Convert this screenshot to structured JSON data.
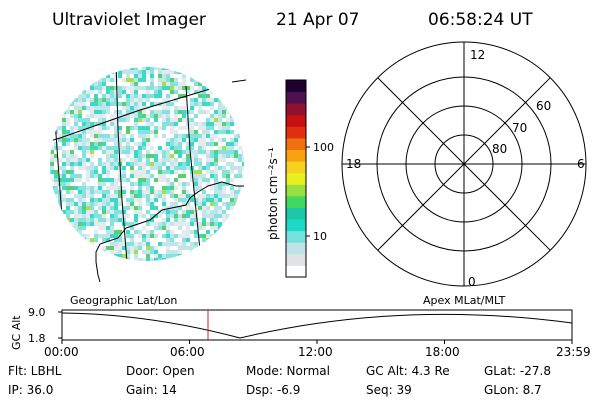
{
  "header": {
    "instrument": "Ultraviolet Imager",
    "date": "21 Apr 07",
    "time": "06:58:24 UT"
  },
  "colorbar": {
    "unit_label": "photon cm⁻²s⁻¹",
    "tick_100": "100",
    "tick_10": "10",
    "colors": [
      "#ffffff",
      "#dde3e6",
      "#bfe3e8",
      "#74e2dc",
      "#1dd8c8",
      "#1cc8a8",
      "#40d860",
      "#98e040",
      "#e8f020",
      "#f8d020",
      "#f8a010",
      "#f07010",
      "#e03010",
      "#c81010",
      "#901030",
      "#501050",
      "#200030"
    ]
  },
  "images": {
    "left_caption": "Geographic Lat/Lon",
    "right_caption": "Apex MLat/MLT"
  },
  "polar": {
    "mlt_12": "12",
    "mlt_18": "18",
    "mlt_6": "6",
    "mlt_0": "0",
    "mlat_60": "60",
    "mlat_70": "70",
    "mlat_80": "80"
  },
  "altitude_plot": {
    "ylabel": "GC Alt",
    "ymax_label": "9.0",
    "ymin_label": "1.8",
    "xticks": [
      "00:00",
      "06:00",
      "12:00",
      "18:00",
      "23:59"
    ],
    "current_marker_color": "#d02020"
  },
  "status": {
    "flt": "Flt: LBHL",
    "ip": "IP: 36.0",
    "door": "Door: Open",
    "gain": "Gain: 14",
    "mode": "Mode: Normal",
    "dsp": "Dsp:    -6.9",
    "gcalt": "GC Alt: 4.3 Re",
    "seq": "Seq: 39",
    "glat": "GLat: -27.8",
    "glon": "GLon:   8.7"
  }
}
